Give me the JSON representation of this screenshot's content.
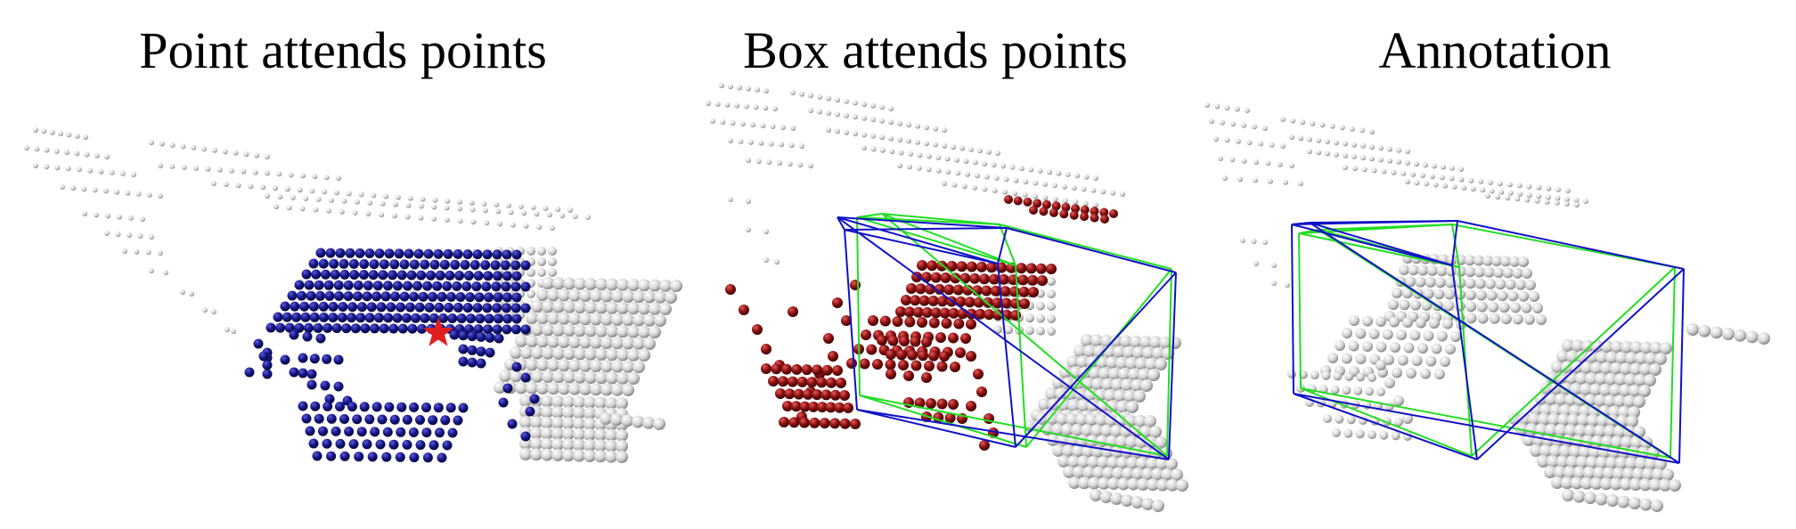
{
  "figure": {
    "panels": [
      {
        "title": "Point attends points",
        "attended_color": "#17178a",
        "query_marker_color": "#e02020",
        "query_marker": "star-icon"
      },
      {
        "title": "Box attends points",
        "attended_color": "#8b0f0f",
        "box_colors": [
          "#1010c8",
          "#22dd22"
        ]
      },
      {
        "title": "Annotation",
        "box_colors": [
          "#1010c8",
          "#22dd22"
        ]
      }
    ],
    "background_point_color": "#d8d8d8"
  }
}
